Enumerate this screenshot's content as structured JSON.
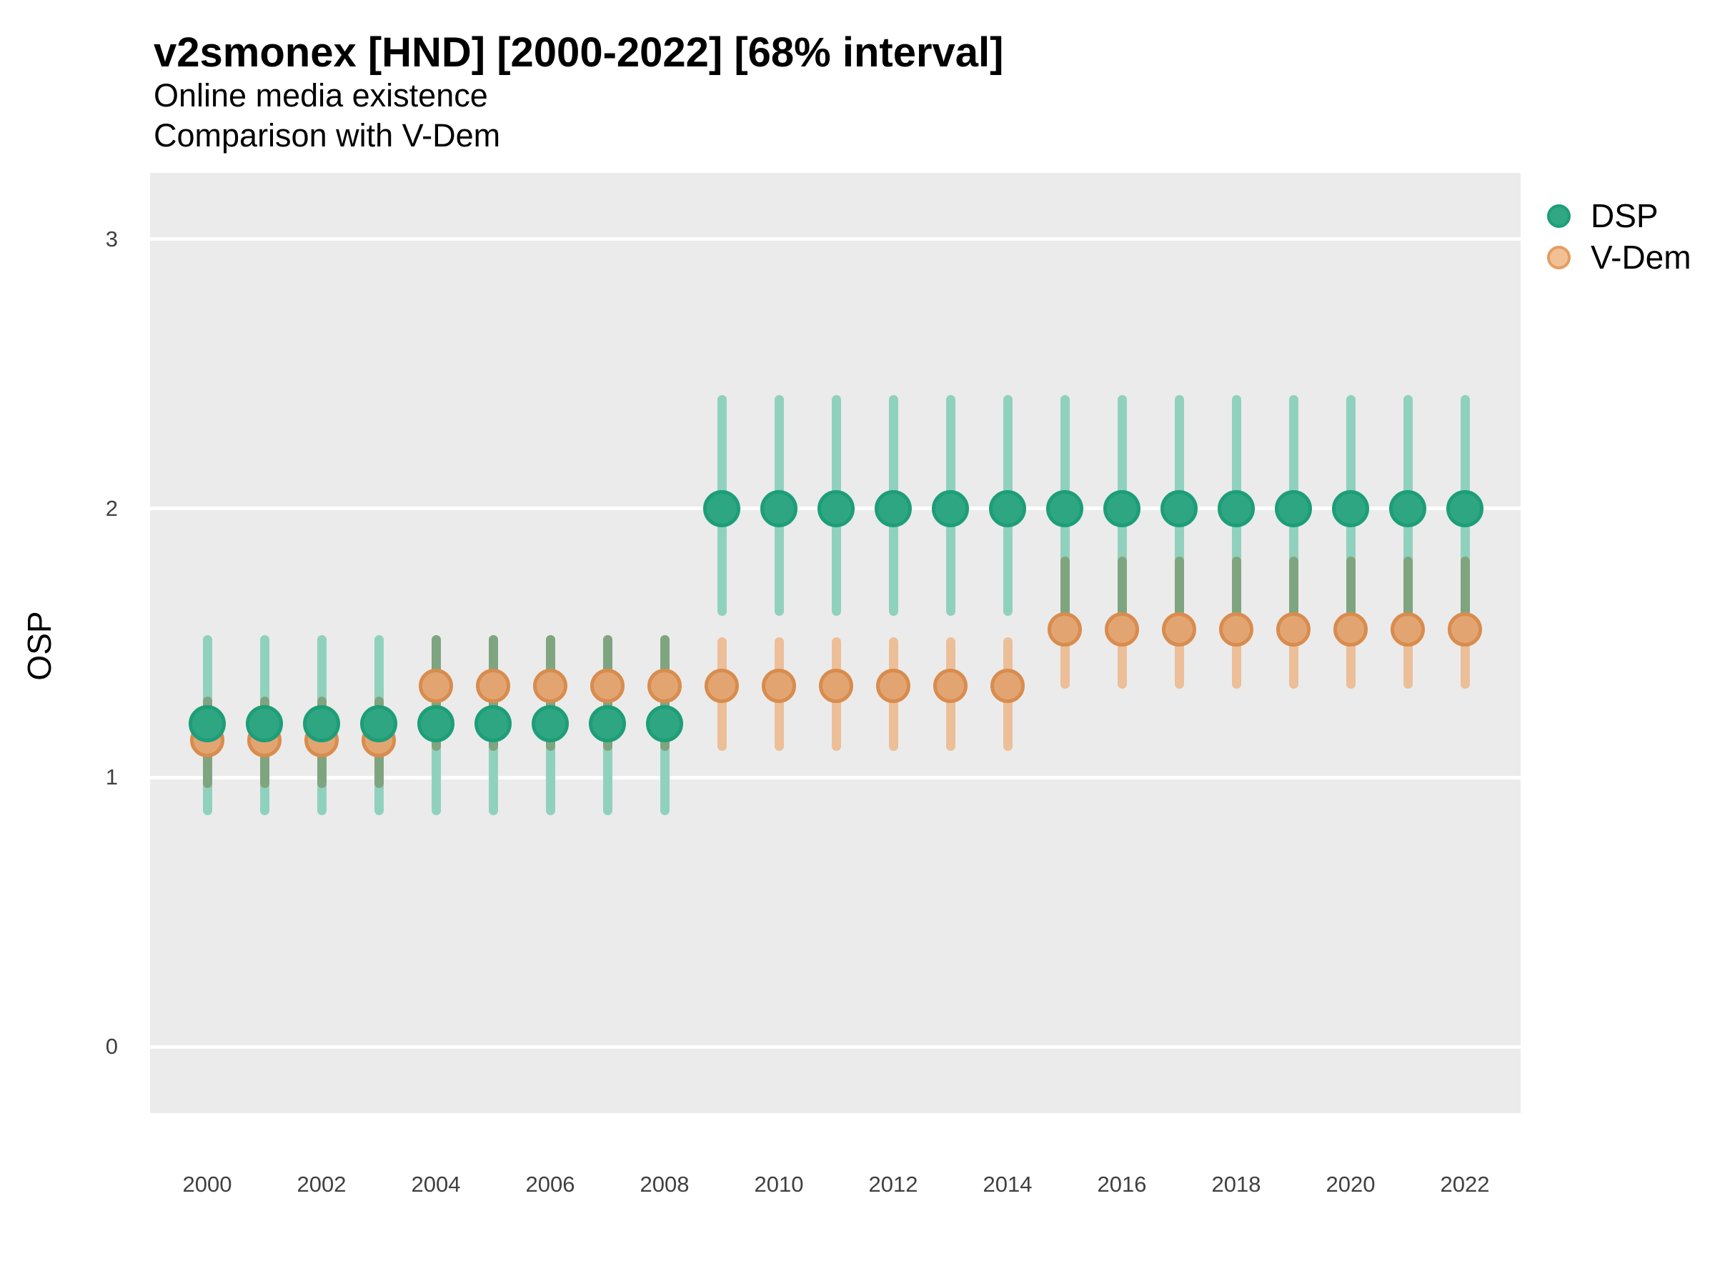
{
  "chart_data": {
    "type": "pointrange",
    "title": "v2smonex [HND] [2000-2022] [68% interval]",
    "subtitle_lines": [
      "Online media existence",
      "Comparison with V-Dem"
    ],
    "ylabel": "OSP",
    "xlabel": "",
    "interval_level": "68%",
    "legend_position": "right",
    "grid": "major horizontal white lines on gray panel",
    "ylim": [
      -0.25,
      3.25
    ],
    "yticks": [
      0,
      1,
      2,
      3
    ],
    "xticks": [
      2000,
      2002,
      2004,
      2006,
      2008,
      2010,
      2012,
      2014,
      2016,
      2018,
      2020,
      2022
    ],
    "years": [
      2000,
      2001,
      2002,
      2003,
      2004,
      2005,
      2006,
      2007,
      2008,
      2009,
      2010,
      2011,
      2012,
      2013,
      2014,
      2015,
      2016,
      2017,
      2018,
      2019,
      2020,
      2021,
      2022
    ],
    "series": [
      {
        "name": "DSP",
        "values": [
          1.2,
          1.2,
          1.2,
          1.2,
          1.2,
          1.2,
          1.2,
          1.2,
          1.2,
          2.0,
          2.0,
          2.0,
          2.0,
          2.0,
          2.0,
          2.0,
          2.0,
          2.0,
          2.0,
          2.0,
          2.0,
          2.0,
          2.0
        ],
        "lower": [
          0.86,
          0.86,
          0.86,
          0.86,
          0.86,
          0.86,
          0.86,
          0.86,
          0.86,
          1.6,
          1.6,
          1.6,
          1.6,
          1.6,
          1.6,
          1.6,
          1.6,
          1.6,
          1.6,
          1.6,
          1.6,
          1.6,
          1.6
        ],
        "upper": [
          1.53,
          1.53,
          1.53,
          1.53,
          1.53,
          1.53,
          1.53,
          1.53,
          1.53,
          2.42,
          2.42,
          2.42,
          2.42,
          2.42,
          2.42,
          2.42,
          2.42,
          2.42,
          2.42,
          2.42,
          2.42,
          2.42,
          2.42
        ]
      },
      {
        "name": "V-Dem",
        "values": [
          1.14,
          1.14,
          1.14,
          1.14,
          1.34,
          1.34,
          1.34,
          1.34,
          1.34,
          1.34,
          1.34,
          1.34,
          1.34,
          1.34,
          1.34,
          1.55,
          1.55,
          1.55,
          1.55,
          1.55,
          1.55,
          1.55,
          1.55
        ],
        "lower": [
          0.96,
          0.96,
          0.96,
          0.96,
          1.1,
          1.1,
          1.1,
          1.1,
          1.1,
          1.1,
          1.1,
          1.1,
          1.1,
          1.1,
          1.1,
          1.33,
          1.33,
          1.33,
          1.33,
          1.33,
          1.33,
          1.33,
          1.33
        ],
        "upper": [
          1.3,
          1.3,
          1.3,
          1.3,
          1.53,
          1.53,
          1.53,
          1.53,
          1.53,
          1.52,
          1.52,
          1.52,
          1.52,
          1.52,
          1.52,
          1.82,
          1.82,
          1.82,
          1.82,
          1.82,
          1.82,
          1.82,
          1.82
        ]
      }
    ]
  },
  "colors": {
    "panel_bg": "#EBEBEB",
    "grid": "#FFFFFF",
    "dsp_bar": "#90D1BE",
    "vdem_bar": "#ECBF98",
    "overlap_bar": "#7EA57F",
    "dsp_point_fill": "#2FA682",
    "dsp_point_stroke": "#1D9E78",
    "vdem_point_fill": "#E2A572",
    "vdem_point_stroke": "#D88C4E",
    "legend_dsp_fill": "#31A783",
    "legend_dsp_stroke": "#1D9E78",
    "legend_vdem_fill": "#F2C095",
    "legend_vdem_stroke": "#E69C61",
    "axis_text": "#404040",
    "text": "#000000"
  }
}
